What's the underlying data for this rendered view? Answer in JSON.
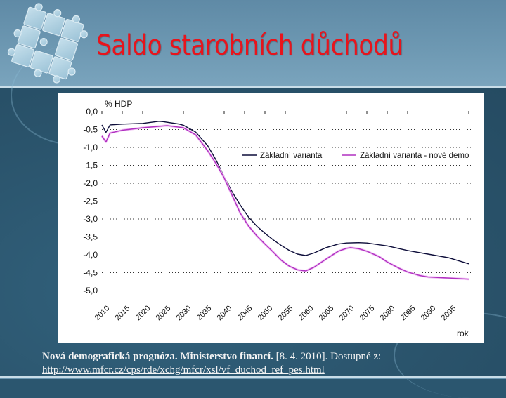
{
  "slide": {
    "title": "Saldo starobních důchodů",
    "logo_icon": "puzzle-pieces-icon",
    "colors": {
      "title": "#e8141c",
      "header_bg": "#6d98b2",
      "body_bg": "#2b566f",
      "panel_bg": "#ffffff"
    }
  },
  "citation": {
    "bold_part": "Nová demografická prognóza. Ministerstvo financí.",
    "normal_part": " [8. 4. 2010]. Dostupné z:",
    "url": "http://www.mfcr.cz/cps/rde/xchg/mfcr/xsl/vf_duchod_ref_pes.html"
  },
  "chart_data": {
    "type": "line",
    "title": "",
    "ylabel": "% HDP",
    "xlabel": "rok",
    "ylim": [
      -5.0,
      0.0
    ],
    "xlim": [
      2010,
      2100
    ],
    "y_ticks": [
      "0,0",
      "-0,5",
      "-1,0",
      "-1,5",
      "-2,0",
      "-2,5",
      "-3,0",
      "-3,5",
      "-4,0",
      "-4,5",
      "-5,0"
    ],
    "y_tick_values": [
      0,
      -0.5,
      -1.0,
      -1.5,
      -2.0,
      -2.5,
      -3.0,
      -3.5,
      -4.0,
      -4.5,
      -5.0
    ],
    "gridlines_at": [
      -0.5,
      -1.0,
      -1.5,
      -2.0,
      -3.0,
      -3.5,
      -4.5
    ],
    "grid_style": "dotted horizontal",
    "x_tick_labels": [
      "2010",
      "2015",
      "2020",
      "2025",
      "2030",
      "2035",
      "2040",
      "2045",
      "2050",
      "2055",
      "2060",
      "2065",
      "2070",
      "2075",
      "2080",
      "2085",
      "2090",
      "2095"
    ],
    "legend_position": "upper right inside plot",
    "series": [
      {
        "name": "Základní varianta",
        "color": "#0d0d3a",
        "x": [
          2010,
          2011,
          2012,
          2015,
          2020,
          2024,
          2025,
          2029,
          2030,
          2033,
          2036,
          2038,
          2040,
          2042,
          2044,
          2046,
          2048,
          2050,
          2052,
          2054,
          2056,
          2058,
          2060,
          2062,
          2065,
          2068,
          2070,
          2073,
          2075,
          2078,
          2080,
          2085,
          2090,
          2095,
          2100
        ],
        "values": [
          -0.37,
          -0.58,
          -0.37,
          -0.35,
          -0.33,
          -0.27,
          -0.28,
          -0.35,
          -0.38,
          -0.57,
          -0.96,
          -1.35,
          -1.82,
          -2.25,
          -2.62,
          -2.95,
          -3.2,
          -3.4,
          -3.58,
          -3.74,
          -3.88,
          -3.98,
          -4.02,
          -3.95,
          -3.8,
          -3.7,
          -3.67,
          -3.66,
          -3.67,
          -3.72,
          -3.75,
          -3.88,
          -3.98,
          -4.08,
          -4.25
        ]
      },
      {
        "name": "Základní varianta - nové demo",
        "color": "#b030c0",
        "x": [
          2010,
          2011,
          2012,
          2015,
          2020,
          2026,
          2030,
          2033,
          2036,
          2038,
          2040,
          2042,
          2044,
          2046,
          2048,
          2050,
          2052,
          2054,
          2056,
          2058,
          2060,
          2062,
          2065,
          2068,
          2070,
          2071,
          2073,
          2075,
          2078,
          2080,
          2083,
          2085,
          2088,
          2090,
          2095,
          2100
        ],
        "values": [
          -0.68,
          -0.85,
          -0.6,
          -0.52,
          -0.45,
          -0.39,
          -0.45,
          -0.65,
          -1.1,
          -1.45,
          -1.85,
          -2.35,
          -2.85,
          -3.2,
          -3.47,
          -3.7,
          -3.92,
          -4.15,
          -4.32,
          -4.42,
          -4.45,
          -4.35,
          -4.12,
          -3.9,
          -3.82,
          -3.8,
          -3.83,
          -3.9,
          -4.05,
          -4.2,
          -4.38,
          -4.48,
          -4.58,
          -4.62,
          -4.65,
          -4.68
        ]
      }
    ]
  }
}
